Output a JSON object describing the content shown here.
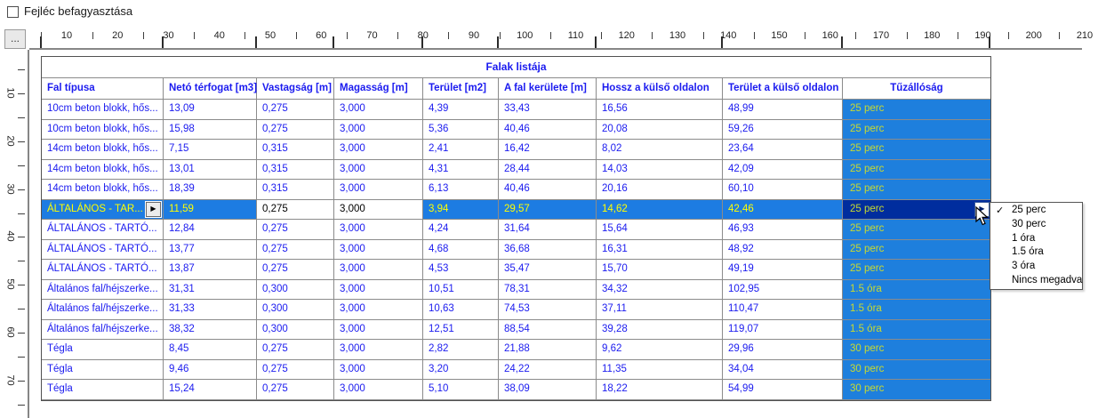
{
  "app": {
    "freeze_header_label": "Fejléc befagyasztása",
    "freeze_header_checked": false,
    "more_button_label": "..."
  },
  "ruler": {
    "h_numbers": [
      10,
      20,
      30,
      40,
      50,
      60,
      70,
      80,
      90,
      100,
      110,
      120,
      130,
      140,
      150,
      160,
      170,
      180,
      190,
      200,
      210
    ],
    "v_numbers": [
      10,
      20,
      30,
      40,
      50,
      60,
      70
    ]
  },
  "table": {
    "title": "Falak listája",
    "columns": [
      {
        "label": "Fal típusa",
        "width": 137
      },
      {
        "label": "Netó térfogat [m3]",
        "width": 105
      },
      {
        "label": "Vastagság [m]",
        "width": 87
      },
      {
        "label": "Magasság [m]",
        "width": 100
      },
      {
        "label": "Terület [m2]",
        "width": 85
      },
      {
        "label": "A fal kerülete [m]",
        "width": 110
      },
      {
        "label": "Hossz a külső oldalon",
        "width": 142
      },
      {
        "label": "Terület a külső oldalon",
        "width": 135
      },
      {
        "label": "Tűzállóság",
        "width": 166
      }
    ],
    "rows": [
      {
        "cells": [
          "10cm beton blokk, hős...",
          "13,09",
          "0,275",
          "3,000",
          "4,39",
          "33,43",
          "16,56",
          "48,99",
          "25 perc"
        ]
      },
      {
        "cells": [
          "10cm beton blokk, hős...",
          "15,98",
          "0,275",
          "3,000",
          "5,36",
          "40,46",
          "20,08",
          "59,26",
          "25 perc"
        ]
      },
      {
        "cells": [
          "14cm beton blokk, hős...",
          "7,15",
          "0,315",
          "3,000",
          "2,41",
          "16,42",
          "8,02",
          "23,64",
          "25 perc"
        ]
      },
      {
        "cells": [
          "14cm beton blokk, hős...",
          "13,01",
          "0,315",
          "3,000",
          "4,31",
          "28,44",
          "14,03",
          "42,09",
          "25 perc"
        ]
      },
      {
        "cells": [
          "14cm beton blokk, hős...",
          "18,39",
          "0,315",
          "3,000",
          "6,13",
          "40,46",
          "20,16",
          "60,10",
          "25 perc"
        ]
      },
      {
        "cells": [
          "ÁLTALÁNOS - TAR...",
          "11,59",
          "0,275",
          "3,000",
          "3,94",
          "29,57",
          "14,62",
          "42,46",
          "25 perc"
        ],
        "selected": true,
        "editable_cols": [
          2,
          3
        ]
      },
      {
        "cells": [
          "ÁLTALÁNOS - TARTÓ...",
          "12,84",
          "0,275",
          "3,000",
          "4,24",
          "31,64",
          "15,64",
          "46,93",
          "25 perc"
        ]
      },
      {
        "cells": [
          "ÁLTALÁNOS - TARTÓ...",
          "13,77",
          "0,275",
          "3,000",
          "4,68",
          "36,68",
          "16,31",
          "48,92",
          "25 perc"
        ]
      },
      {
        "cells": [
          "ÁLTALÁNOS - TARTÓ...",
          "13,87",
          "0,275",
          "3,000",
          "4,53",
          "35,47",
          "15,70",
          "49,19",
          "25 perc"
        ]
      },
      {
        "cells": [
          "Általános fal/héjszerke...",
          "31,31",
          "0,300",
          "3,000",
          "10,51",
          "78,31",
          "34,32",
          "102,95",
          "1.5 óra"
        ]
      },
      {
        "cells": [
          "Általános fal/héjszerke...",
          "31,33",
          "0,300",
          "3,000",
          "10,63",
          "74,53",
          "37,11",
          "110,47",
          "1.5 óra"
        ]
      },
      {
        "cells": [
          "Általános fal/héjszerke...",
          "38,32",
          "0,300",
          "3,000",
          "12,51",
          "88,54",
          "39,28",
          "119,07",
          "1.5 óra"
        ]
      },
      {
        "cells": [
          "Tégla",
          "8,45",
          "0,275",
          "3,000",
          "2,82",
          "21,88",
          "9,62",
          "29,96",
          "30 perc"
        ]
      },
      {
        "cells": [
          "Tégla",
          "9,46",
          "0,275",
          "3,000",
          "3,20",
          "24,22",
          "11,35",
          "34,04",
          "30 perc"
        ]
      },
      {
        "cells": [
          "Tégla",
          "15,24",
          "0,275",
          "3,000",
          "5,10",
          "38,09",
          "18,22",
          "54,99",
          "30 perc"
        ]
      }
    ],
    "selected_row_index": 5
  },
  "dropdown": {
    "items": [
      "25 perc",
      "30 perc",
      "1 óra",
      "1.5 óra",
      "3 óra",
      "Nincs megadva"
    ],
    "checked_item": "25 perc",
    "check_glyph": "✓"
  },
  "icons": {
    "row_button_glyph": "▶",
    "combo_button_glyph": "▶"
  },
  "colors": {
    "cell_text": "#1b1bef",
    "fire_bg": "#1e7fdd",
    "fire_text": "#c9da30",
    "selected_bg": "#1d7ce2",
    "selected_text": "#ffff00",
    "selected_fire_bg": "#002d9e"
  }
}
